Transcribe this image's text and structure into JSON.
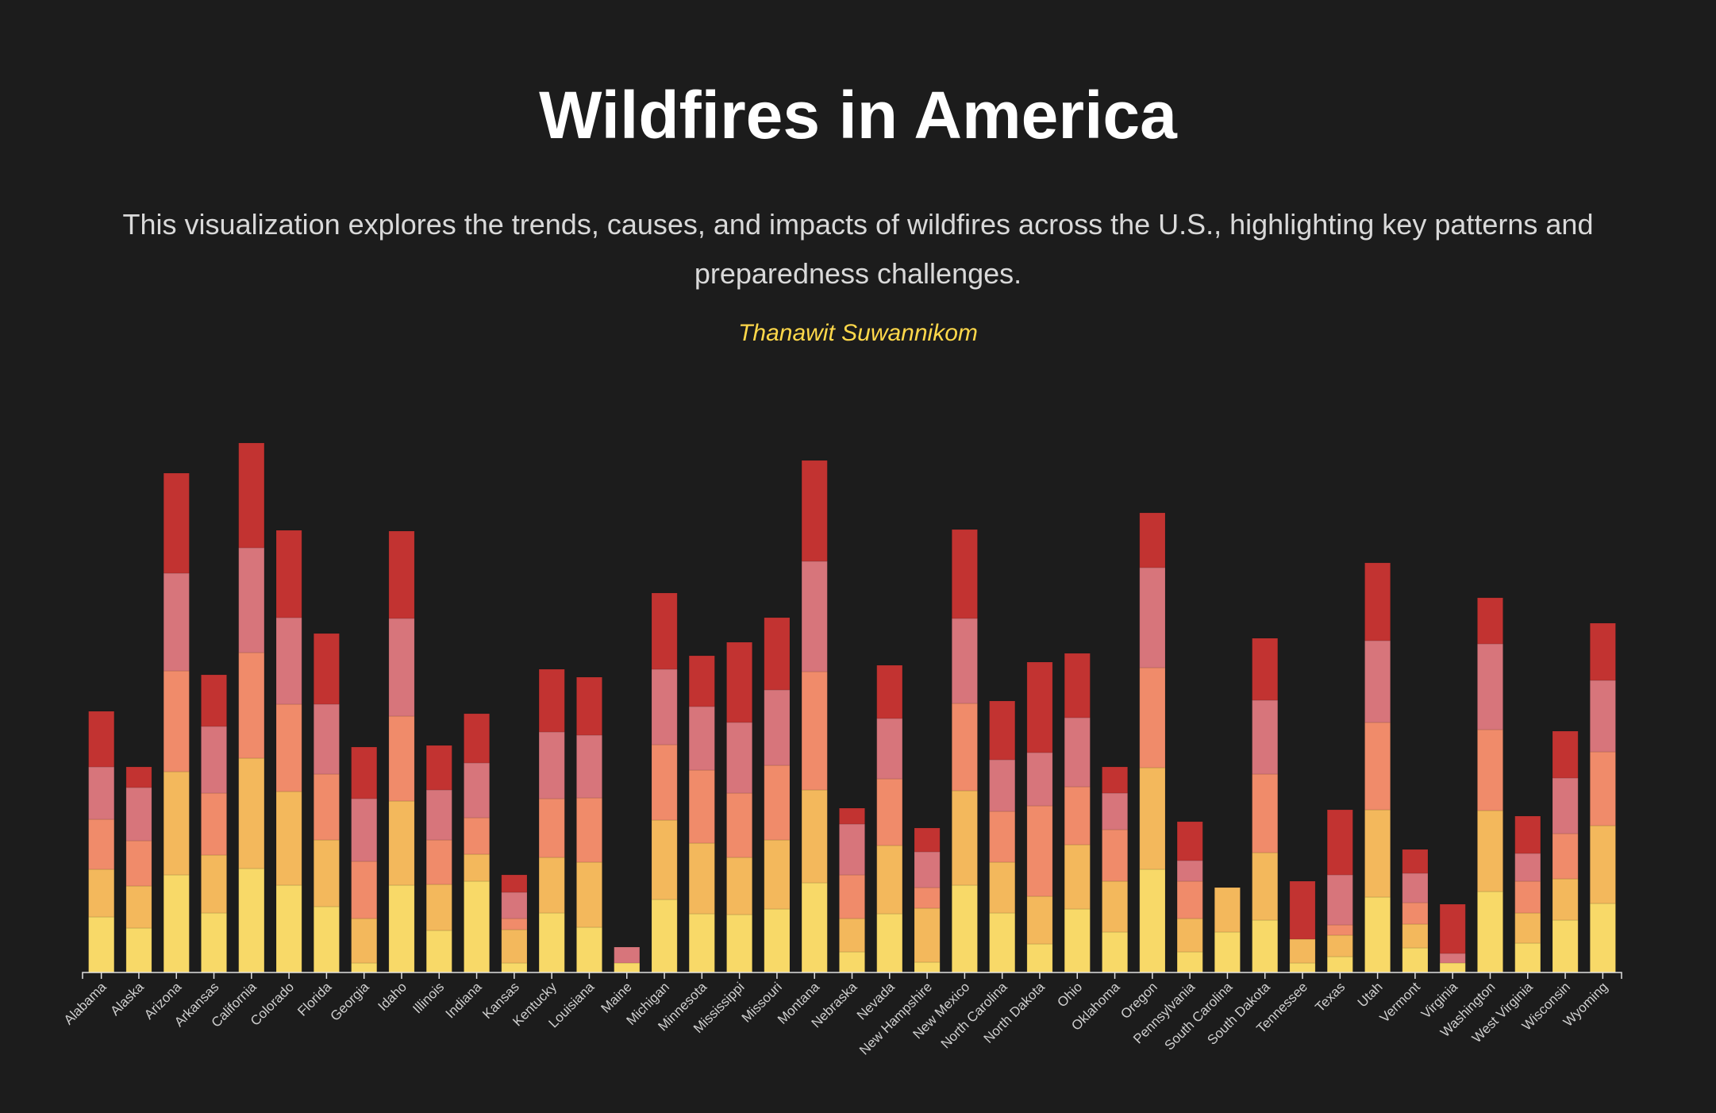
{
  "header": {
    "title": "Wildfires in America",
    "subtitle": "This visualization explores the trends, causes, and impacts of wildfires across the U.S., highlighting key patterns and preparedness challenges.",
    "author": "Thanawit Suwannikom"
  },
  "chart_data": {
    "type": "bar",
    "stacked": true,
    "title": "",
    "xlabel": "",
    "ylabel": "",
    "y_axis_visible": false,
    "grid": false,
    "legend": "none",
    "ylim": [
      0,
      665
    ],
    "categories": [
      "Alabama",
      "Alaska",
      "Arizona",
      "Arkansas",
      "California",
      "Colorado",
      "Florida",
      "Georgia",
      "Idaho",
      "Illinois",
      "Indiana",
      "Kansas",
      "Kentucky",
      "Louisiana",
      "Maine",
      "Michigan",
      "Minnesota",
      "Mississippi",
      "Missouri",
      "Montana",
      "Nebraska",
      "Nevada",
      "New Hampshire",
      "New Mexico",
      "North Carolina",
      "North Dakota",
      "Ohio",
      "Oklahoma",
      "Oregon",
      "Pennsylvania",
      "South Carolina",
      "South Dakota",
      "Tennessee",
      "Texas",
      "Utah",
      "Vermont",
      "Virginia",
      "Washington",
      "West Virginia",
      "Wisconsin",
      "Wyoming"
    ],
    "colors": [
      "#f8d968",
      "#f3b85c",
      "#f08b6a",
      "#d7757b",
      "#c23331"
    ],
    "series": [
      {
        "values": [
          70,
          56,
          123,
          75,
          131,
          110,
          83,
          12,
          110,
          53,
          115,
          12,
          75,
          57,
          12,
          92,
          74,
          73,
          80,
          113,
          26,
          74,
          13,
          110,
          75,
          36,
          80,
          51,
          130,
          26,
          51,
          66,
          12,
          20,
          95,
          31,
          12,
          102,
          37,
          66,
          87
        ]
      },
      {
        "values": [
          60,
          53,
          130,
          73,
          139,
          118,
          84,
          56,
          106,
          58,
          34,
          42,
          70,
          82,
          0,
          100,
          89,
          72,
          87,
          117,
          42,
          86,
          68,
          119,
          64,
          60,
          81,
          64,
          128,
          42,
          56,
          85,
          30,
          27,
          110,
          30,
          0,
          102,
          38,
          52,
          98
        ]
      },
      {
        "values": [
          63,
          57,
          127,
          78,
          133,
          110,
          83,
          72,
          107,
          56,
          46,
          14,
          74,
          81,
          0,
          95,
          92,
          81,
          94,
          149,
          55,
          84,
          26,
          110,
          64,
          114,
          73,
          65,
          126,
          47,
          0,
          99,
          0,
          13,
          110,
          27,
          0,
          102,
          40,
          57,
          93
        ]
      },
      {
        "values": [
          66,
          67,
          123,
          84,
          132,
          109,
          88,
          79,
          123,
          63,
          69,
          33,
          84,
          79,
          20,
          95,
          80,
          89,
          95,
          139,
          64,
          76,
          45,
          107,
          65,
          67,
          87,
          46,
          126,
          26,
          0,
          93,
          0,
          63,
          103,
          37,
          12,
          108,
          35,
          70,
          90
        ]
      },
      {
        "values": [
          70,
          26,
          126,
          65,
          132,
          110,
          89,
          65,
          110,
          56,
          62,
          22,
          79,
          73,
          0,
          96,
          64,
          101,
          91,
          127,
          20,
          67,
          30,
          112,
          74,
          114,
          81,
          33,
          69,
          49,
          0,
          78,
          73,
          82,
          98,
          30,
          62,
          58,
          47,
          59,
          72
        ]
      }
    ]
  }
}
